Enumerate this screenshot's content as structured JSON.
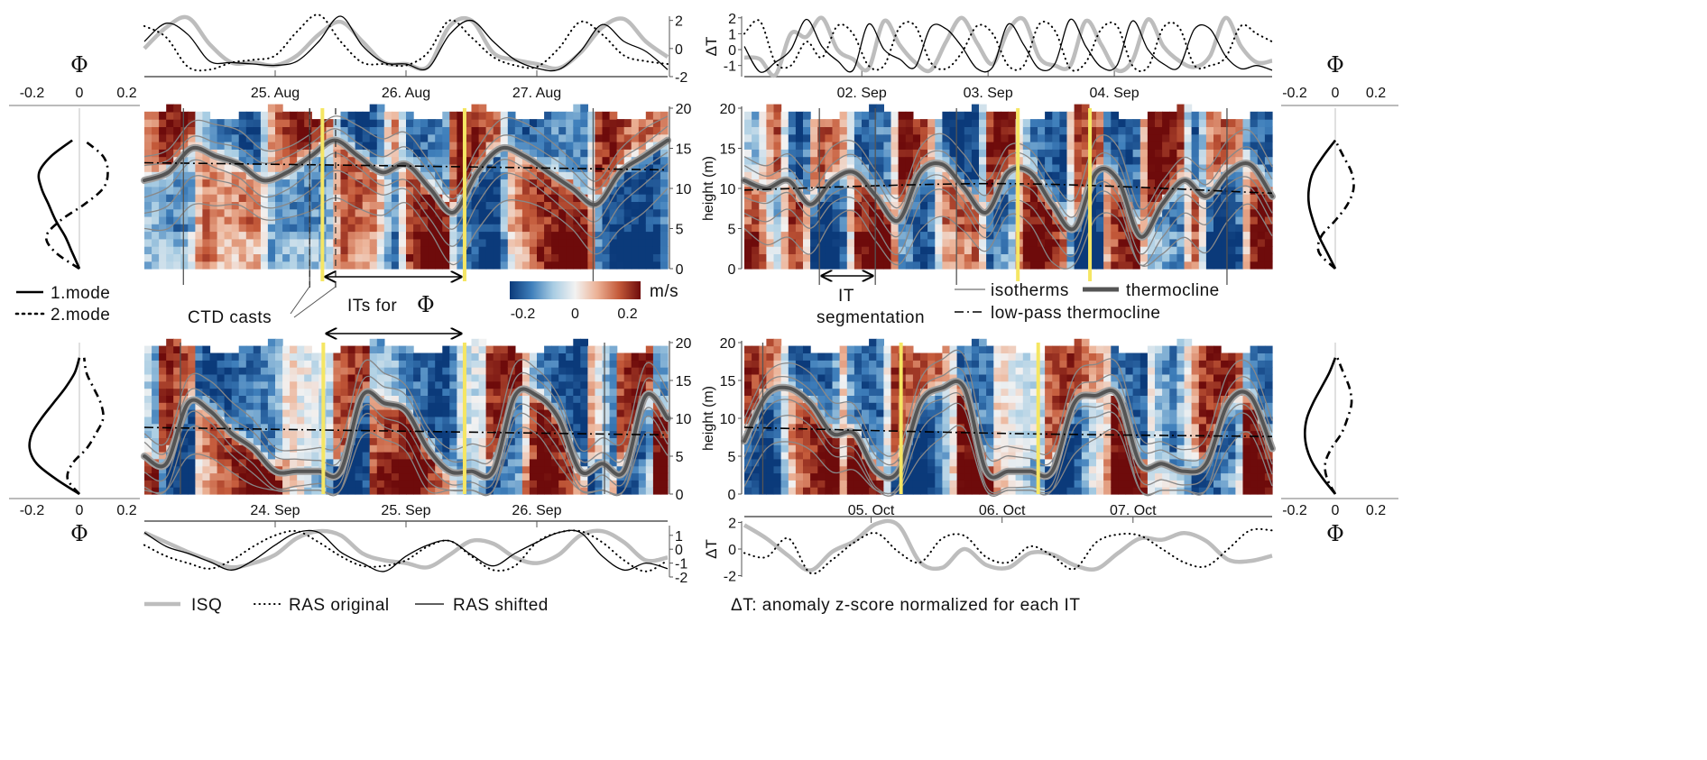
{
  "figure": {
    "legend_modes": {
      "mode1": "1.mode",
      "mode2": "2.mode"
    },
    "annotations": {
      "ctd_casts": "CTD casts",
      "its_for_phi": "ITs for",
      "phi_symbol": "Φ",
      "it_segmentation_line1": "IT",
      "it_segmentation_line2": "segmentation"
    },
    "colorbar": {
      "unit": "m/s",
      "ticks": [
        {
          "label": "-0.2",
          "value": -0.2
        },
        {
          "label": "0",
          "value": 0
        },
        {
          "label": "0.2",
          "value": 0.2
        }
      ],
      "range": [
        -0.25,
        0.25
      ],
      "colors": [
        "#0b3a7a",
        "#3f7fbb",
        "#a9cde3",
        "#f2f2f2",
        "#ecb296",
        "#c45a3a",
        "#6e0b0b"
      ]
    },
    "legend_lines": {
      "isotherms": "isotherms",
      "thermocline": "thermocline",
      "lowpass": "low-pass thermocline"
    },
    "legend_series": {
      "isq": "ISQ",
      "ras_original": "RAS original",
      "ras_shifted": "RAS shifted"
    },
    "delta_t_note": "ΔT: anomaly z-score normalized for each IT",
    "colors": {
      "it_window": "#f5e663",
      "isq": "#bdbdbd",
      "ras": "#000000",
      "thermocline": "#555555",
      "isotherm": "#888888"
    }
  },
  "chart_data": [
    {
      "type": "heatmap",
      "time_range": [
        "24.08 00:00",
        "28.08 00:00"
      ],
      "date_ticks": [
        {
          "label": "25. Aug",
          "time": "25.08 00:00"
        },
        {
          "label": "26. Aug",
          "time": "26.08 00:00"
        },
        {
          "label": "27. Aug",
          "time": "27.08 00:00"
        }
      ],
      "height_label": "",
      "height_range": [
        0,
        20
      ],
      "height_ticks": [
        "0",
        "5",
        "10",
        "15",
        "20"
      ],
      "thermocline": [
        11,
        12,
        15,
        14,
        13,
        11,
        12,
        14,
        16,
        14,
        12,
        13,
        10,
        7,
        12,
        15,
        14,
        12,
        10,
        8,
        12,
        14,
        16
      ],
      "lowpass_thermocline": [
        13.2,
        12.8,
        12.3
      ],
      "it_boundaries": [
        "24.08 07:10",
        "25.08 06:20",
        "27.08 10:20"
      ],
      "ctd_casts": [
        "25.08 06:20",
        "25.08 11:05"
      ],
      "phi_it_window": [
        "25.08 08:40",
        "26.08 10:45"
      ],
      "timeseries": {
        "ylabel": "",
        "axis_side": "right",
        "ylim": [
          -2,
          2.3
        ],
        "yticks": [
          2,
          0,
          -2
        ],
        "isq": [
          0,
          1.5,
          2.2,
          0.3,
          -1.0,
          -1.0,
          -1.2,
          -0.5,
          1.0,
          1.9,
          0.5,
          -1.0,
          -1.1,
          -1.3,
          1.6,
          2.0,
          -0.3,
          -0.8,
          -1.1,
          -1.4,
          -0.3,
          1.5,
          2.1,
          0.5,
          -0.6
        ],
        "ras_original": [
          1.6,
          0.8,
          -1.3,
          -1.5,
          -1.0,
          -0.8,
          -0.5,
          1.2,
          2.4,
          0.5,
          -1.0,
          -1.1,
          -1.2,
          -0.3,
          2.0,
          0.8,
          -0.6,
          -1.2,
          -1.3,
          0,
          1.9,
          1.0,
          -0.5,
          -0.9,
          -1.1
        ],
        "ras_shifted": [
          0.5,
          1.8,
          1.0,
          -0.9,
          -1.0,
          -1.1,
          -1.2,
          -0.9,
          0.5,
          2.3,
          0.2,
          -1.0,
          -1.1,
          -1.4,
          1.0,
          2.0,
          0.5,
          -0.8,
          -1.4,
          -1.5,
          -0.2,
          1.7,
          0.5,
          -0.2,
          -1.5
        ]
      },
      "phi_profile": {
        "xlabel": "Φ",
        "xlim": [
          -0.3,
          0.3
        ],
        "xticks": [
          {
            "label": "-0.2",
            "value": -0.2
          },
          {
            "label": "0",
            "value": 0
          },
          {
            "label": "0.2",
            "value": 0.2
          }
        ],
        "heights": [
          0,
          2,
          4,
          6,
          8,
          10,
          12,
          14,
          16
        ],
        "mode1": [
          0,
          -0.03,
          -0.06,
          -0.1,
          -0.13,
          -0.16,
          -0.17,
          -0.12,
          -0.03
        ],
        "mode2": [
          0,
          -0.1,
          -0.14,
          -0.08,
          0.02,
          0.1,
          0.12,
          0.1,
          0.02
        ]
      }
    },
    {
      "type": "heatmap",
      "time_range": [
        "01.09 01:40",
        "05.09 06:00"
      ],
      "date_ticks": [
        {
          "label": "02. Sep",
          "time": "02.09 00:00"
        },
        {
          "label": "03. Sep",
          "time": "03.09 00:00"
        },
        {
          "label": "04. Sep",
          "time": "04.09 00:00"
        }
      ],
      "height_label": "height (m)",
      "height_range": [
        0,
        20
      ],
      "height_ticks": [
        "0",
        "5",
        "10",
        "15",
        "20"
      ],
      "thermocline": [
        11,
        10,
        11,
        8,
        11,
        12,
        9,
        6,
        12,
        13,
        10,
        7,
        12,
        12,
        8,
        5,
        12,
        11,
        4,
        8,
        11,
        9,
        12,
        13,
        9
      ],
      "lowpass_thermocline": [
        9.8,
        10.6,
        9.4
      ],
      "it_boundaries": [
        "01.09 15:56",
        "02.09 02:34",
        "02.09 18:00",
        "04.09 21:25"
      ],
      "ctd_casts": [],
      "phi_it_window": [
        "03.09 05:40",
        "03.09 19:22"
      ],
      "timeseries": {
        "ylabel": "ΔT",
        "axis_side": "left",
        "ylim": [
          -1.7,
          2.1
        ],
        "yticks": [
          2,
          1,
          0,
          -1
        ],
        "isq": [
          -0.5,
          -0.6,
          -1.6,
          1.0,
          0.8,
          2.0,
          0.0,
          -0.6,
          -1.2,
          1.8,
          0.3,
          -0.8,
          -1.3,
          0.5,
          2.0,
          0.4,
          -0.9,
          1.2,
          1.9,
          -0.5,
          -1.0,
          -1.0,
          1.8,
          0.3,
          -1.3,
          -0.7,
          1.9,
          0.2,
          -0.7,
          -1.1,
          -0.4,
          2.0,
          0.2,
          -0.8,
          -0.7
        ],
        "ras_original": [
          1.0,
          1.8,
          -0.8,
          -1.0,
          0.5,
          -0.5,
          1.5,
          1.0,
          -1.0,
          -1.0,
          1.4,
          1.5,
          -0.8,
          -1.2,
          -0.2,
          1.5,
          1.0,
          -1.0,
          -1.0,
          1.6,
          1.2,
          -1.2,
          -0.8,
          1.3,
          1.5,
          -1.0,
          -1.1,
          1.4,
          1.4,
          -1.0,
          -1.0,
          -0.5,
          1.5,
          1.0,
          0.5
        ],
        "ras_shifted": [
          0.2,
          -1.4,
          -0.8,
          0.0,
          1.9,
          0.2,
          -0.7,
          -1.3,
          1.6,
          0.0,
          -0.6,
          -1.1,
          1.4,
          1.3,
          0.2,
          -1.2,
          -1.1,
          1.6,
          0.3,
          -1.2,
          -0.9,
          1.9,
          0.2,
          -1.1,
          -1.0,
          1.8,
          0.0,
          -0.9,
          -1.1,
          1.3,
          1.3,
          -0.4,
          -1.2,
          -1.0,
          -1.3
        ]
      },
      "phi_profile": {
        "xlabel": "Φ",
        "xlim": [
          -0.3,
          0.3
        ],
        "xticks": [
          {
            "label": "-0.2",
            "value": -0.2
          },
          {
            "label": "0",
            "value": 0
          },
          {
            "label": "0.2",
            "value": 0.2
          }
        ],
        "heights": [
          0,
          2,
          4,
          6,
          8,
          10,
          12,
          14,
          16
        ],
        "mode1": [
          0,
          -0.04,
          -0.08,
          -0.11,
          -0.13,
          -0.13,
          -0.11,
          -0.06,
          0
        ],
        "mode2": [
          0,
          -0.08,
          -0.07,
          0,
          0.06,
          0.09,
          0.08,
          0.04,
          0
        ]
      }
    },
    {
      "type": "heatmap",
      "time_range": [
        "23.09 00:00",
        "27.09 00:00"
      ],
      "date_ticks": [
        {
          "label": "24. Sep",
          "time": "24.09 00:00"
        },
        {
          "label": "25. Sep",
          "time": "25.09 00:00"
        },
        {
          "label": "26. Sep",
          "time": "26.09 00:00"
        }
      ],
      "height_label": "",
      "height_range": [
        0,
        20
      ],
      "height_ticks": [
        "0",
        "5",
        "10",
        "15",
        "20"
      ],
      "thermocline": [
        5,
        4,
        12,
        11,
        8,
        6,
        3,
        3,
        3,
        3,
        13,
        12,
        11,
        6,
        3,
        3,
        3,
        13,
        13,
        10,
        3,
        4,
        3,
        13,
        10
      ],
      "lowpass_thermocline": [
        8.8,
        8.3,
        7.8
      ],
      "it_boundaries": [
        "23.09 06:37",
        "26.09 12:25"
      ],
      "ctd_casts": [],
      "phi_it_window": [
        "24.09 08:50",
        "25.09 10:45"
      ],
      "timeseries": {
        "ylabel": "",
        "axis_side": "right",
        "ylim": [
          -2,
          1.7
        ],
        "yticks": [
          1,
          0,
          -1,
          -2
        ],
        "isq": [
          1.2,
          0.5,
          -0.2,
          -0.8,
          -1.3,
          -1.0,
          -0.4,
          0.8,
          1.3,
          1.0,
          -0.3,
          -0.8,
          -1.0,
          -1.3,
          -0.4,
          0.6,
          0.4,
          -0.6,
          -1.0,
          -0.4,
          1.0,
          1.3,
          0.5,
          -0.8,
          -0.6
        ],
        "ras_original": [
          0.3,
          -0.5,
          -1.0,
          -1.4,
          -0.8,
          0.2,
          1.0,
          1.3,
          0.5,
          -0.5,
          -1.2,
          -1.2,
          -0.8,
          0.2,
          0.6,
          -0.5,
          -1.5,
          -1.2,
          0.5,
          1.2,
          1.3,
          0.5,
          -0.8,
          -1.6,
          -0.8
        ],
        "ras_shifted": [
          1.2,
          0.2,
          -0.3,
          -0.9,
          -1.5,
          -0.8,
          0.3,
          1.2,
          1.2,
          -0.2,
          -1.0,
          -1.6,
          -0.5,
          0.3,
          0.6,
          -0.4,
          -1.2,
          -0.3,
          0.5,
          1.2,
          1.2,
          -0.5,
          -1.5,
          -1.0,
          -1.4
        ]
      },
      "phi_profile": {
        "xlabel": "Φ",
        "xlim": [
          -0.3,
          0.3
        ],
        "xticks": [
          {
            "label": "-0.2",
            "value": -0.2
          },
          {
            "label": "0",
            "value": 0
          },
          {
            "label": "0.2",
            "value": 0.2
          }
        ],
        "heights": [
          0,
          2,
          4,
          6,
          8,
          10,
          12,
          14,
          16,
          18
        ],
        "mode1": [
          0,
          -0.1,
          -0.18,
          -0.21,
          -0.2,
          -0.16,
          -0.11,
          -0.06,
          -0.02,
          0
        ],
        "mode2": [
          0,
          -0.05,
          -0.03,
          0.03,
          0.07,
          0.1,
          0.09,
          0.06,
          0.03,
          0.02
        ]
      }
    },
    {
      "type": "heatmap",
      "time_range": [
        "04.10 00:45",
        "08.10 01:30"
      ],
      "date_ticks": [
        {
          "label": "05. Oct",
          "time": "05.10 00:00"
        },
        {
          "label": "06. Oct",
          "time": "06.10 00:00"
        },
        {
          "label": "07. Oct",
          "time": "07.10 00:00"
        }
      ],
      "height_label": "height (m)",
      "height_range": [
        0,
        20
      ],
      "height_ticks": [
        "0",
        "5",
        "10",
        "15",
        "20"
      ],
      "thermocline": [
        7,
        13,
        14,
        12,
        8,
        8,
        3,
        3,
        12,
        14,
        14,
        3,
        3,
        3,
        3,
        12,
        13,
        13,
        4,
        4,
        3,
        4,
        12,
        13,
        6
      ],
      "lowpass_thermocline": [
        8.8,
        8.0,
        7.6
      ],
      "it_boundaries": [
        "04.10 04:08"
      ],
      "ctd_casts": [],
      "phi_it_window": [
        "05.10 05:28",
        "06.10 06:37"
      ],
      "timeseries": {
        "ylabel": "ΔT",
        "axis_side": "left",
        "ylim": [
          -2.1,
          2.1
        ],
        "yticks": [
          2,
          0,
          -2
        ],
        "isq": [
          1.8,
          0.8,
          -0.5,
          -1.6,
          -0.2,
          0.6,
          1.9,
          1.8,
          -1.0,
          -1.4,
          0.0,
          -1.2,
          -1.4,
          -0.3,
          -0.4,
          -1.2,
          -1.5,
          -0.3,
          0.8,
          0.7,
          1.2,
          0.6,
          -0.8,
          -0.9,
          -0.5
        ],
        "ras_original": [
          -0.3,
          -0.6,
          0.8,
          -1.8,
          -0.8,
          0.5,
          1.2,
          -0.2,
          -1.0,
          0.8,
          1.0,
          -0.6,
          -1.0,
          0.2,
          -0.5,
          -1.5,
          0.5,
          1.1,
          1.0,
          0.0,
          -1.0,
          -1.3,
          0.0,
          1.4,
          1.4
        ]
      },
      "phi_profile": {
        "xlabel": "Φ",
        "xlim": [
          -0.3,
          0.3
        ],
        "xticks": [
          {
            "label": "-0.2",
            "value": -0.2
          },
          {
            "label": "0",
            "value": 0
          },
          {
            "label": "0.2",
            "value": 0.2
          }
        ],
        "heights": [
          0,
          2,
          4,
          6,
          8,
          10,
          12,
          14,
          16,
          18
        ],
        "mode1": [
          0,
          -0.06,
          -0.11,
          -0.14,
          -0.15,
          -0.14,
          -0.11,
          -0.07,
          -0.03,
          0
        ],
        "mode2": [
          0,
          -0.04,
          -0.05,
          -0.02,
          0.03,
          0.06,
          0.08,
          0.07,
          0.04,
          0.01
        ]
      }
    }
  ]
}
